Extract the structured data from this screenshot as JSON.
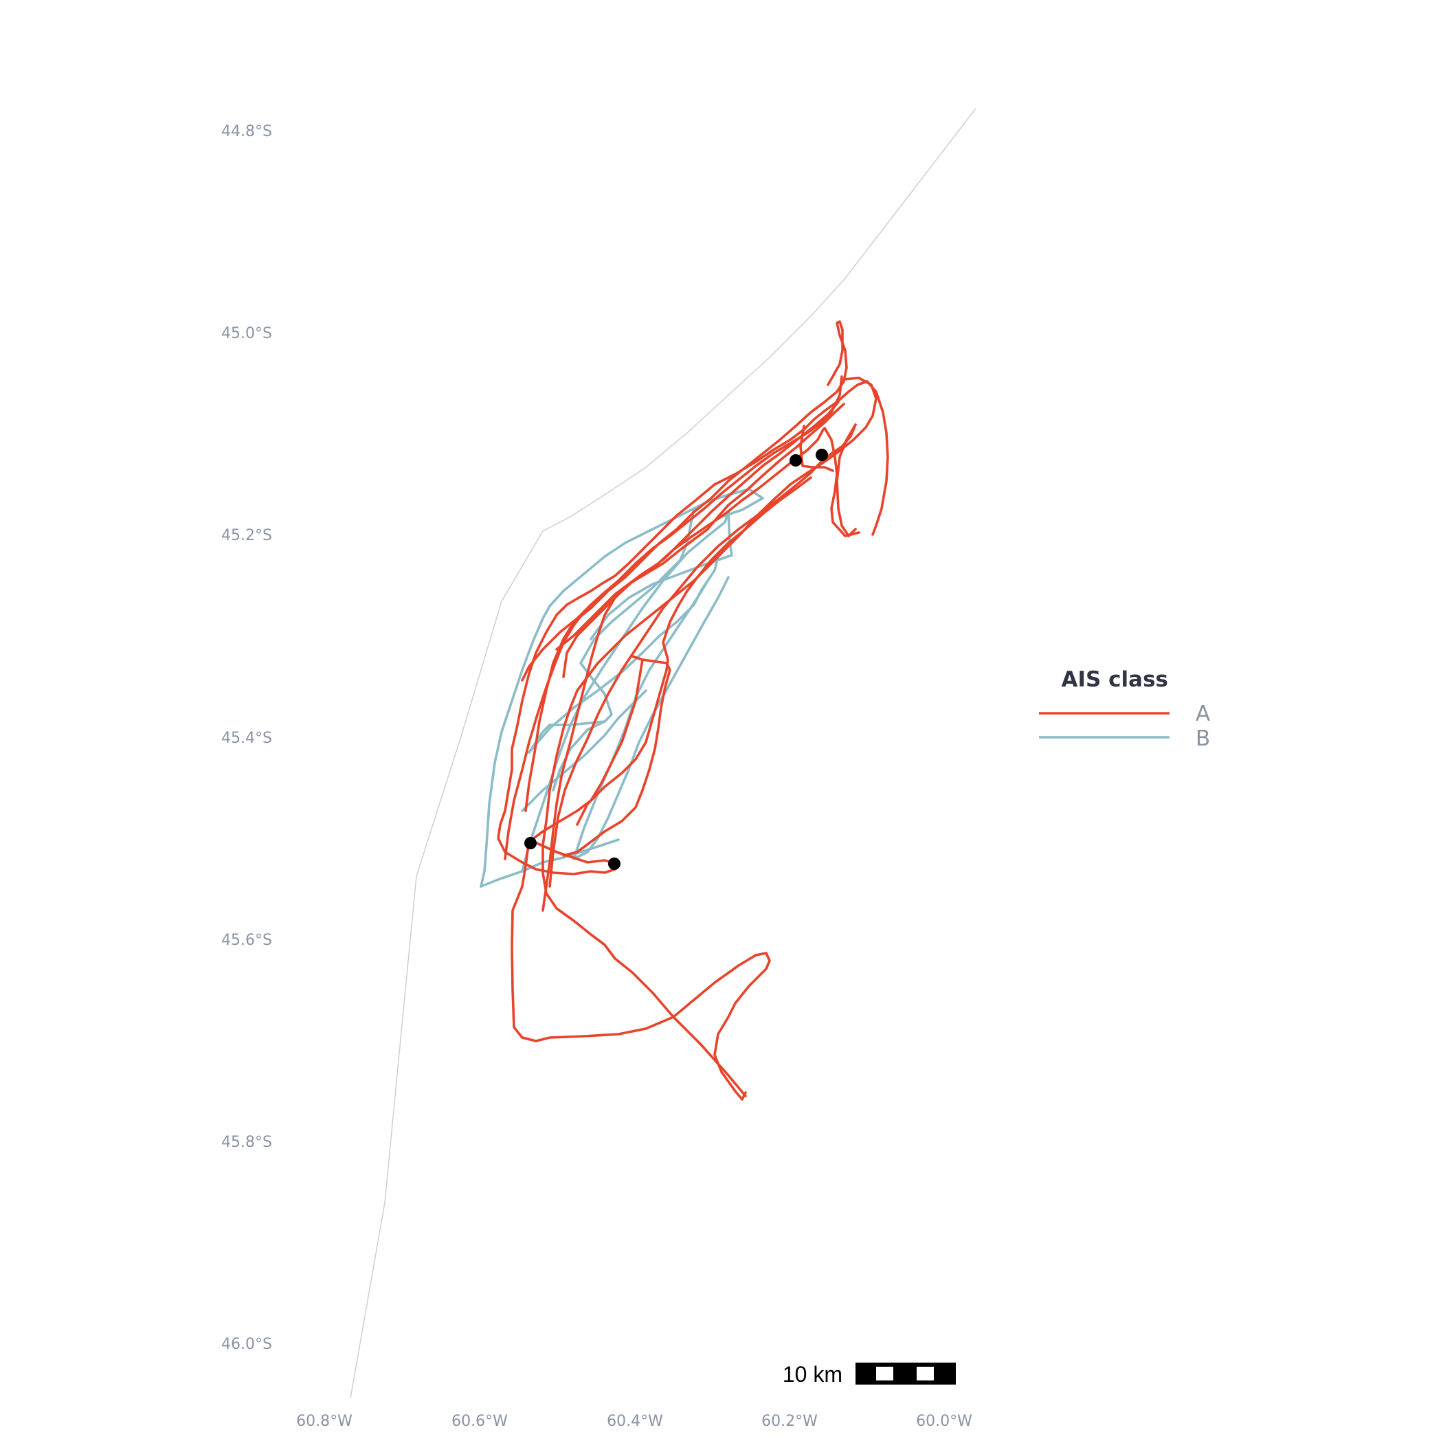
{
  "map": {
    "lat_ticks": [
      "44.8°S",
      "45.0°S",
      "45.2°S",
      "45.4°S",
      "45.6°S",
      "45.8°S",
      "46.0°S"
    ],
    "lon_ticks": [
      "60.8°W",
      "60.6°W",
      "60.4°W",
      "60.2°W",
      "60.0°W"
    ],
    "scale_bar": {
      "label": "10 km"
    }
  },
  "legend": {
    "title": "AIS class",
    "items": [
      {
        "label": "A",
        "color": "#e8432b"
      },
      {
        "label": "B",
        "color": "#8bbcc7"
      }
    ]
  },
  "colors": {
    "class_a": "#e8432b",
    "class_b": "#8bbcc7",
    "boundary": "#cfcfcf",
    "marker": "#000000",
    "axis_text": "#8a93a3"
  }
}
